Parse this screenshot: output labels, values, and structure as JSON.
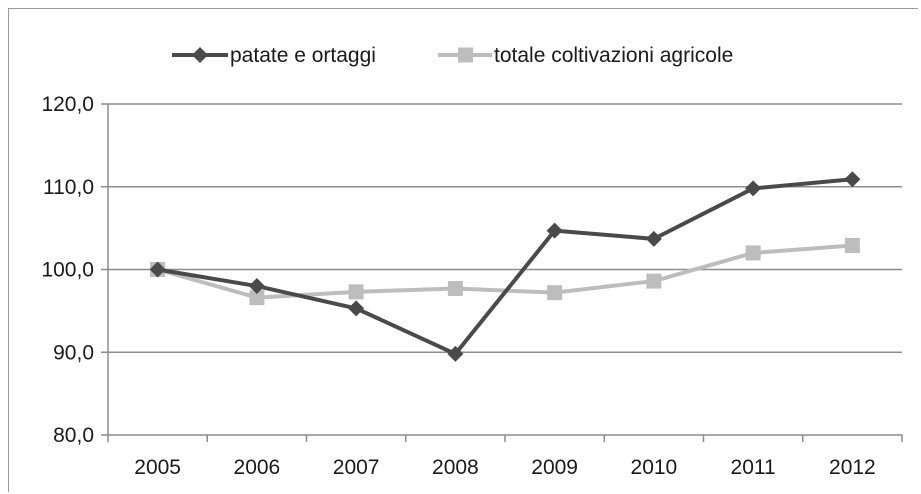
{
  "chart_data": {
    "type": "line",
    "title": "",
    "xlabel": "",
    "ylabel": "",
    "categories": [
      "2005",
      "2006",
      "2007",
      "2008",
      "2009",
      "2010",
      "2011",
      "2012"
    ],
    "ylim": [
      80,
      120
    ],
    "yticks": [
      "80,0",
      "90,0",
      "100,0",
      "110,0",
      "120,0"
    ],
    "ytick_values": [
      80,
      90,
      100,
      110,
      120
    ],
    "grid": true,
    "legend_position": "top",
    "series": [
      {
        "name": "patate e ortaggi",
        "values": [
          100.0,
          98.0,
          95.3,
          89.8,
          104.7,
          103.7,
          109.8,
          110.9
        ],
        "color": "#4a4a4a",
        "marker": "diamond"
      },
      {
        "name": "totale coltivazioni agricole",
        "values": [
          100.0,
          96.6,
          97.3,
          97.7,
          97.2,
          98.6,
          102.0,
          102.9
        ],
        "color": "#bdbdbd",
        "marker": "square"
      }
    ]
  }
}
